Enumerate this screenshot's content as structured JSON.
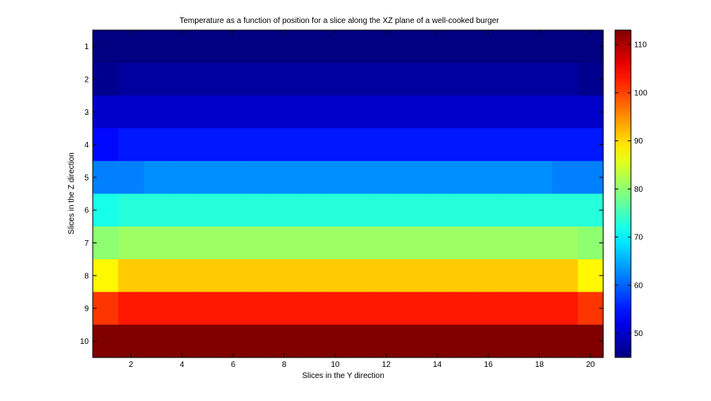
{
  "chart_data": {
    "type": "heatmap",
    "title": "Temperature as a function of position for a slice along the XZ plane of a well-cooked burger",
    "xlabel": "Slices in the Y direction",
    "ylabel": "Slices in the Z direction",
    "x": [
      1,
      2,
      3,
      4,
      5,
      6,
      7,
      8,
      9,
      10,
      11,
      12,
      13,
      14,
      15,
      16,
      17,
      18,
      19,
      20
    ],
    "y": [
      1,
      2,
      3,
      4,
      5,
      6,
      7,
      8,
      9,
      10
    ],
    "xticks": [
      2,
      4,
      6,
      8,
      10,
      12,
      14,
      16,
      18,
      20
    ],
    "yticks": [
      1,
      2,
      3,
      4,
      5,
      6,
      7,
      8,
      9,
      10
    ],
    "xlim": [
      0.5,
      20.5
    ],
    "ylim": [
      0.5,
      10.5
    ],
    "y_direction": "reverse",
    "colormap": "jet",
    "clim": [
      45,
      113
    ],
    "colorbar_ticks": [
      50,
      60,
      70,
      80,
      90,
      100,
      110
    ],
    "colorbar": "right",
    "values": [
      [
        45,
        45,
        45,
        45,
        45,
        45,
        45,
        45,
        45,
        45,
        45,
        45,
        45,
        45,
        45,
        45,
        45,
        45,
        45,
        45
      ],
      [
        46,
        47,
        47,
        47,
        47,
        47,
        47,
        47,
        47,
        47,
        47,
        47,
        47,
        47,
        47,
        47,
        47,
        47,
        47,
        46
      ],
      [
        50,
        50,
        50,
        50,
        50,
        50,
        50,
        50,
        50,
        50,
        50,
        50,
        50,
        50,
        50,
        50,
        50,
        50,
        50,
        50
      ],
      [
        54,
        55,
        55,
        55,
        55,
        55,
        55,
        55,
        55,
        55,
        55,
        55,
        55,
        55,
        55,
        55,
        55,
        55,
        55,
        55
      ],
      [
        62,
        62,
        63,
        63,
        63,
        63,
        63,
        63,
        63,
        63,
        63,
        63,
        63,
        63,
        63,
        63,
        63,
        63,
        62,
        62
      ],
      [
        72,
        73,
        73,
        73,
        73,
        73,
        73,
        73,
        73,
        73,
        73,
        73,
        73,
        73,
        73,
        73,
        73,
        73,
        73,
        73
      ],
      [
        80,
        81,
        81,
        81,
        81,
        81,
        81,
        81,
        81,
        81,
        81,
        81,
        81,
        81,
        81,
        81,
        81,
        81,
        81,
        80
      ],
      [
        88,
        91,
        91,
        91,
        91,
        91,
        91,
        91,
        91,
        91,
        91,
        91,
        91,
        91,
        91,
        91,
        91,
        91,
        91,
        88
      ],
      [
        101,
        103,
        103,
        103,
        103,
        103,
        103,
        103,
        103,
        103,
        103,
        103,
        103,
        103,
        103,
        103,
        103,
        103,
        103,
        101
      ],
      [
        113,
        113,
        113,
        113,
        113,
        113,
        113,
        113,
        113,
        113,
        113,
        113,
        113,
        113,
        113,
        113,
        113,
        113,
        113,
        113
      ]
    ]
  }
}
